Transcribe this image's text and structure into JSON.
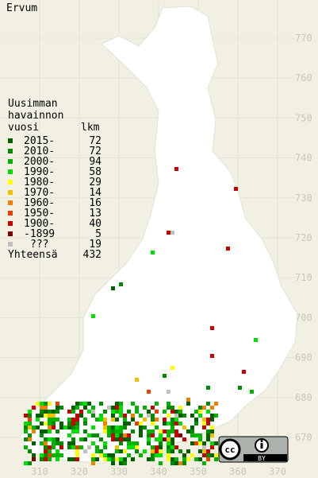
{
  "title": "Ervum",
  "legend": {
    "heading": [
      "Uusimman",
      "havainnon",
      "vuosi"
    ],
    "count_heading": "lkm",
    "rows": [
      {
        "label": "2015-",
        "count": 72,
        "color": "#006000"
      },
      {
        "label": "2010-",
        "count": 72,
        "color": "#008c00"
      },
      {
        "label": "2000-",
        "count": 94,
        "color": "#00b400"
      },
      {
        "label": "1990-",
        "count": 58,
        "color": "#00e000"
      },
      {
        "label": "1980-",
        "count": 29,
        "color": "#ffff00"
      },
      {
        "label": "1970-",
        "count": 14,
        "color": "#f0c000"
      },
      {
        "label": "1960-",
        "count": 16,
        "color": "#f08000"
      },
      {
        "label": "1950-",
        "count": 13,
        "color": "#e84000"
      },
      {
        "label": "1900-",
        "count": 40,
        "color": "#c80000"
      },
      {
        "label": "-1899",
        "count": 5,
        "color": "#800000"
      },
      {
        "label": "???",
        "count": 19,
        "color": "#c0c0c0"
      }
    ],
    "total": {
      "label": "Yhteensä",
      "count": 432
    }
  },
  "axes": {
    "northing": [
      770,
      760,
      750,
      740,
      730,
      720,
      710,
      700,
      690,
      680,
      670
    ],
    "easting": [
      310,
      320,
      330,
      340,
      350,
      360,
      370
    ]
  },
  "license": {
    "badge": "cc",
    "by": "BY"
  }
}
